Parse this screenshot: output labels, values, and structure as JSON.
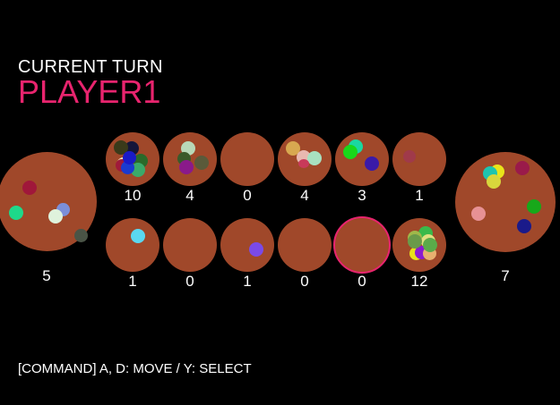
{
  "turn": {
    "label": "CURRENT TURN",
    "player": "PLAYER1"
  },
  "board": {
    "pit_color": "#a0482a",
    "highlight_color": "#e8246e",
    "left_store": {
      "count": "5"
    },
    "right_store": {
      "count": "7"
    },
    "top_row": [
      {
        "count": "10"
      },
      {
        "count": "4"
      },
      {
        "count": "0"
      },
      {
        "count": "4"
      },
      {
        "count": "3"
      },
      {
        "count": "1"
      }
    ],
    "bottom_row": [
      {
        "count": "1"
      },
      {
        "count": "0"
      },
      {
        "count": "1"
      },
      {
        "count": "0"
      },
      {
        "count": "0",
        "selected": true
      },
      {
        "count": "12"
      }
    ]
  },
  "command": "[COMMAND] A, D: MOVE / Y: SELECT"
}
